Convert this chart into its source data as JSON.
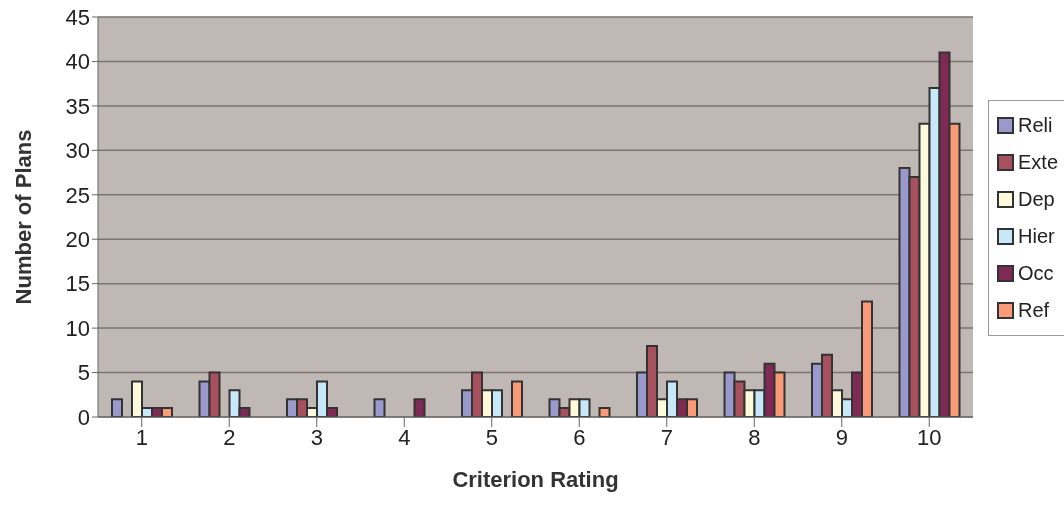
{
  "chart_data": {
    "type": "bar",
    "xlabel": "Criterion Rating",
    "ylabel": "Number of Plans",
    "categories": [
      "1",
      "2",
      "3",
      "4",
      "5",
      "6",
      "7",
      "8",
      "9",
      "10"
    ],
    "series": [
      {
        "name": "Reli",
        "color": "#9999cc",
        "values": [
          2,
          4,
          2,
          2,
          3,
          2,
          5,
          5,
          6,
          28
        ]
      },
      {
        "name": "Exte",
        "color": "#a8515e",
        "values": [
          0,
          5,
          2,
          0,
          5,
          1,
          8,
          4,
          7,
          27
        ]
      },
      {
        "name": "Dep",
        "color": "#fffadc",
        "values": [
          4,
          0,
          1,
          0,
          3,
          2,
          2,
          3,
          3,
          33
        ]
      },
      {
        "name": "Hier",
        "color": "#c6e8f8",
        "values": [
          1,
          3,
          4,
          0,
          3,
          2,
          4,
          3,
          2,
          37
        ]
      },
      {
        "name": "Occ",
        "color": "#7f2a55",
        "values": [
          1,
          1,
          1,
          2,
          0,
          0,
          2,
          6,
          5,
          41
        ]
      },
      {
        "name": "Ref",
        "color": "#f99a78",
        "values": [
          1,
          0,
          0,
          0,
          4,
          1,
          2,
          5,
          13,
          33
        ]
      }
    ],
    "ylim": [
      0,
      45
    ],
    "yticks": [
      0,
      5,
      10,
      15,
      20,
      25,
      30,
      35,
      40,
      45
    ],
    "grid": "y",
    "legend": "right"
  }
}
